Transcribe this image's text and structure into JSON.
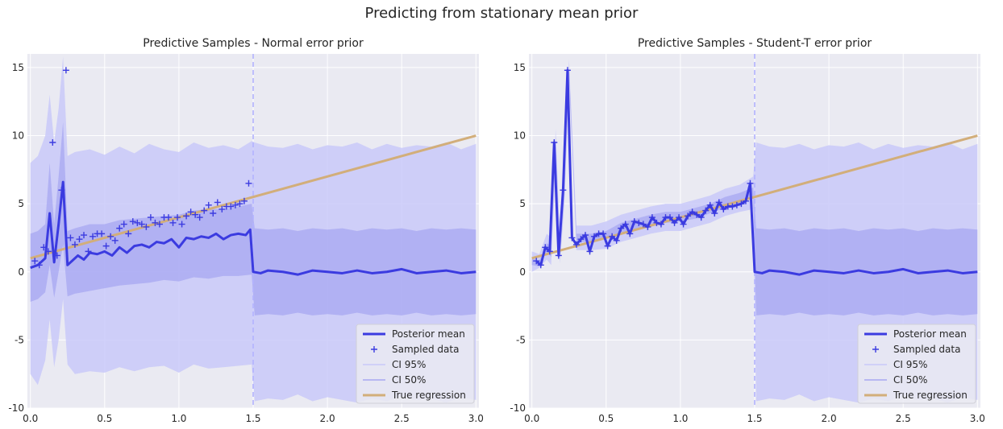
{
  "figure": {
    "suptitle": "Predicting from stationary mean prior"
  },
  "colors": {
    "axes_bg": "#eaeaf2",
    "grid": "#ffffff",
    "posterior_mean": "#3b3be0",
    "ci95": "#c9c9f9",
    "ci50": "#a7a7f1",
    "true_regression": "#d2ae7a",
    "vline": "#b3b3ff"
  },
  "chart_data": [
    {
      "type": "line",
      "title": "Predictive Samples - Normal error prior",
      "xlabel": "",
      "ylabel": "",
      "xlim": [
        -0.02,
        3.02
      ],
      "ylim": [
        -10,
        16
      ],
      "xticks": [
        "0.0",
        "0.5",
        "1.0",
        "1.5",
        "2.0",
        "2.5",
        "3.0"
      ],
      "yticks": [
        "-10",
        "-5",
        "0",
        "5",
        "10",
        "15"
      ],
      "grid": true,
      "vline_x": 1.5,
      "legend": {
        "position": "lower-right",
        "entries": [
          "Posterior mean",
          "Sampled data",
          "CI 95%",
          "CI 50%",
          "True regression"
        ]
      },
      "true_regression": {
        "x": [
          0,
          3
        ],
        "y": [
          1,
          10
        ]
      },
      "sampled_data": {
        "x": [
          0.03,
          0.06,
          0.09,
          0.12,
          0.15,
          0.18,
          0.21,
          0.24,
          0.27,
          0.3,
          0.33,
          0.36,
          0.39,
          0.42,
          0.45,
          0.48,
          0.51,
          0.54,
          0.57,
          0.6,
          0.63,
          0.66,
          0.69,
          0.72,
          0.75,
          0.78,
          0.81,
          0.84,
          0.87,
          0.9,
          0.93,
          0.96,
          0.99,
          1.02,
          1.05,
          1.08,
          1.11,
          1.14,
          1.17,
          1.2,
          1.23,
          1.26,
          1.29,
          1.32,
          1.35,
          1.38,
          1.41,
          1.44,
          1.47
        ],
        "y": [
          0.8,
          0.5,
          1.8,
          1.5,
          9.5,
          1.2,
          6.0,
          14.8,
          2.5,
          2.0,
          2.4,
          2.7,
          1.5,
          2.6,
          2.8,
          2.8,
          1.9,
          2.6,
          2.3,
          3.2,
          3.5,
          2.8,
          3.7,
          3.6,
          3.5,
          3.3,
          4.0,
          3.6,
          3.5,
          4.0,
          4.0,
          3.6,
          4.0,
          3.5,
          4.1,
          4.4,
          4.2,
          4.0,
          4.5,
          4.9,
          4.3,
          5.1,
          4.6,
          4.8,
          4.8,
          4.9,
          5.0,
          5.2,
          6.5
        ]
      },
      "posterior_mean": {
        "x": [
          0.0,
          0.05,
          0.1,
          0.13,
          0.16,
          0.19,
          0.22,
          0.25,
          0.28,
          0.32,
          0.36,
          0.4,
          0.45,
          0.5,
          0.55,
          0.6,
          0.65,
          0.7,
          0.75,
          0.8,
          0.85,
          0.9,
          0.95,
          1.0,
          1.05,
          1.1,
          1.15,
          1.2,
          1.25,
          1.3,
          1.35,
          1.4,
          1.45,
          1.48,
          1.5,
          1.55,
          1.6,
          1.7,
          1.8,
          1.9,
          2.0,
          2.1,
          2.2,
          2.3,
          2.4,
          2.5,
          2.6,
          2.7,
          2.8,
          2.9,
          3.0
        ],
        "y": [
          0.3,
          0.5,
          1.0,
          4.3,
          0.7,
          3.5,
          6.6,
          0.5,
          0.8,
          1.2,
          0.9,
          1.4,
          1.3,
          1.5,
          1.2,
          1.8,
          1.4,
          1.9,
          2.0,
          1.8,
          2.2,
          2.1,
          2.4,
          1.8,
          2.5,
          2.4,
          2.6,
          2.5,
          2.8,
          2.4,
          2.7,
          2.8,
          2.7,
          3.1,
          0.0,
          -0.1,
          0.1,
          0.0,
          -0.2,
          0.1,
          0.0,
          -0.1,
          0.1,
          -0.1,
          0.0,
          0.2,
          -0.1,
          0.0,
          0.1,
          -0.1,
          0.0
        ]
      },
      "ci95": {
        "x": [
          0.0,
          0.05,
          0.1,
          0.13,
          0.16,
          0.19,
          0.22,
          0.25,
          0.3,
          0.4,
          0.5,
          0.6,
          0.7,
          0.8,
          0.9,
          1.0,
          1.1,
          1.2,
          1.3,
          1.4,
          1.49,
          1.51,
          1.6,
          1.7,
          1.8,
          1.9,
          2.0,
          2.1,
          2.2,
          2.3,
          2.4,
          2.5,
          2.6,
          2.7,
          2.8,
          2.9,
          3.0
        ],
        "lower": [
          -7.5,
          -8.3,
          -6.5,
          -3.5,
          -7.0,
          -5.0,
          -2.0,
          -6.8,
          -7.5,
          -7.3,
          -7.4,
          -7.0,
          -7.3,
          -7.0,
          -6.9,
          -7.4,
          -6.8,
          -7.1,
          -7.0,
          -6.9,
          -6.8,
          -9.5,
          -9.3,
          -9.4,
          -9.0,
          -9.5,
          -9.2,
          -9.4,
          -9.6,
          -9.3,
          -9.5,
          -9.1,
          -9.4,
          -9.3,
          -9.6,
          -9.2,
          -9.4
        ],
        "upper": [
          8.0,
          8.5,
          10.0,
          13.0,
          9.5,
          12.0,
          15.8,
          8.5,
          8.8,
          9.0,
          8.6,
          9.2,
          8.7,
          9.4,
          9.0,
          8.8,
          9.5,
          9.1,
          9.3,
          9.0,
          9.6,
          9.5,
          9.2,
          9.1,
          9.4,
          9.0,
          9.3,
          9.2,
          9.5,
          9.0,
          9.4,
          9.1,
          9.3,
          9.2,
          9.5,
          9.0,
          9.4
        ]
      },
      "ci50": {
        "x": [
          0.0,
          0.05,
          0.1,
          0.13,
          0.16,
          0.19,
          0.22,
          0.25,
          0.3,
          0.4,
          0.5,
          0.6,
          0.7,
          0.8,
          0.9,
          1.0,
          1.1,
          1.2,
          1.3,
          1.4,
          1.49,
          1.51,
          1.6,
          1.7,
          1.8,
          1.9,
          2.0,
          2.1,
          2.2,
          2.3,
          2.4,
          2.5,
          2.6,
          2.7,
          2.8,
          2.9,
          3.0
        ],
        "lower": [
          -2.2,
          -2.0,
          -1.5,
          0.5,
          -1.9,
          0.0,
          2.0,
          -1.8,
          -1.6,
          -1.4,
          -1.2,
          -1.0,
          -0.9,
          -0.8,
          -0.6,
          -0.7,
          -0.4,
          -0.5,
          -0.3,
          -0.3,
          -0.2,
          -3.2,
          -3.1,
          -3.2,
          -3.0,
          -3.2,
          -3.1,
          -3.2,
          -3.0,
          -3.2,
          -3.1,
          -3.2,
          -3.0,
          -3.2,
          -3.1,
          -3.2,
          -3.1
        ],
        "upper": [
          2.8,
          3.0,
          3.5,
          8.0,
          3.5,
          7.0,
          11.0,
          3.0,
          3.2,
          3.5,
          3.5,
          3.8,
          3.9,
          4.0,
          4.1,
          4.2,
          4.5,
          4.6,
          4.6,
          4.8,
          5.0,
          3.2,
          3.1,
          3.2,
          3.0,
          3.2,
          3.1,
          3.2,
          3.0,
          3.2,
          3.1,
          3.2,
          3.0,
          3.2,
          3.1,
          3.2,
          3.1
        ]
      }
    },
    {
      "type": "line",
      "title": "Predictive Samples - Student-T error prior",
      "xlabel": "",
      "ylabel": "",
      "xlim": [
        -0.02,
        3.02
      ],
      "ylim": [
        -10,
        16
      ],
      "xticks": [
        "0.0",
        "0.5",
        "1.0",
        "1.5",
        "2.0",
        "2.5",
        "3.0"
      ],
      "yticks": [
        "-10",
        "-5",
        "0",
        "5",
        "10",
        "15"
      ],
      "grid": true,
      "vline_x": 1.5,
      "legend": {
        "position": "lower-right",
        "entries": [
          "Posterior mean",
          "Sampled data",
          "CI 95%",
          "CI 50%",
          "True regression"
        ]
      },
      "true_regression": {
        "x": [
          0,
          3
        ],
        "y": [
          1,
          10
        ]
      },
      "sampled_data": {
        "x": [
          0.03,
          0.06,
          0.09,
          0.12,
          0.15,
          0.18,
          0.21,
          0.24,
          0.27,
          0.3,
          0.33,
          0.36,
          0.39,
          0.42,
          0.45,
          0.48,
          0.51,
          0.54,
          0.57,
          0.6,
          0.63,
          0.66,
          0.69,
          0.72,
          0.75,
          0.78,
          0.81,
          0.84,
          0.87,
          0.9,
          0.93,
          0.96,
          0.99,
          1.02,
          1.05,
          1.08,
          1.11,
          1.14,
          1.17,
          1.2,
          1.23,
          1.26,
          1.29,
          1.32,
          1.35,
          1.38,
          1.41,
          1.44,
          1.47
        ],
        "y": [
          0.8,
          0.5,
          1.8,
          1.5,
          9.5,
          1.2,
          6.0,
          14.8,
          2.5,
          2.0,
          2.4,
          2.7,
          1.5,
          2.6,
          2.8,
          2.8,
          1.9,
          2.6,
          2.3,
          3.2,
          3.5,
          2.8,
          3.7,
          3.6,
          3.5,
          3.3,
          4.0,
          3.6,
          3.5,
          4.0,
          4.0,
          3.6,
          4.0,
          3.5,
          4.1,
          4.4,
          4.2,
          4.0,
          4.5,
          4.9,
          4.3,
          5.1,
          4.6,
          4.8,
          4.8,
          4.9,
          5.0,
          5.2,
          6.5
        ]
      },
      "posterior_mean": {
        "x": [
          0.03,
          0.06,
          0.09,
          0.12,
          0.15,
          0.18,
          0.21,
          0.24,
          0.27,
          0.3,
          0.33,
          0.36,
          0.39,
          0.42,
          0.45,
          0.48,
          0.51,
          0.54,
          0.57,
          0.6,
          0.63,
          0.66,
          0.69,
          0.72,
          0.75,
          0.78,
          0.81,
          0.84,
          0.87,
          0.9,
          0.93,
          0.96,
          0.99,
          1.02,
          1.05,
          1.08,
          1.11,
          1.14,
          1.17,
          1.2,
          1.23,
          1.26,
          1.29,
          1.32,
          1.35,
          1.38,
          1.41,
          1.44,
          1.47,
          1.5,
          1.55,
          1.6,
          1.7,
          1.8,
          1.9,
          2.0,
          2.1,
          2.2,
          2.3,
          2.4,
          2.5,
          2.6,
          2.7,
          2.8,
          2.9,
          3.0
        ],
        "y": [
          0.8,
          0.5,
          1.8,
          1.5,
          9.5,
          1.2,
          6.0,
          14.8,
          2.5,
          2.0,
          2.4,
          2.7,
          1.5,
          2.6,
          2.8,
          2.8,
          1.9,
          2.6,
          2.3,
          3.2,
          3.5,
          2.8,
          3.7,
          3.6,
          3.5,
          3.3,
          4.0,
          3.6,
          3.5,
          4.0,
          4.0,
          3.6,
          4.0,
          3.5,
          4.1,
          4.4,
          4.2,
          4.0,
          4.5,
          4.9,
          4.3,
          5.1,
          4.6,
          4.8,
          4.8,
          4.9,
          5.0,
          5.2,
          6.5,
          0.0,
          -0.1,
          0.1,
          0.0,
          -0.2,
          0.1,
          0.0,
          -0.1,
          0.1,
          -0.1,
          0.0,
          0.2,
          -0.1,
          0.0,
          0.1,
          -0.1,
          0.0
        ]
      },
      "ci95": {
        "x": [
          0.0,
          0.05,
          0.1,
          0.13,
          0.16,
          0.19,
          0.22,
          0.25,
          0.3,
          0.4,
          0.5,
          0.6,
          0.7,
          0.8,
          0.9,
          1.0,
          1.1,
          1.2,
          1.3,
          1.4,
          1.49,
          1.51,
          1.6,
          1.7,
          1.8,
          1.9,
          2.0,
          2.1,
          2.2,
          2.3,
          2.4,
          2.5,
          2.6,
          2.7,
          2.8,
          2.9,
          3.0
        ],
        "lower": [
          0.0,
          0.3,
          0.9,
          0.5,
          8.5,
          0.6,
          5.3,
          14.0,
          1.6,
          1.6,
          1.7,
          2.2,
          2.5,
          2.8,
          3.0,
          3.0,
          3.3,
          3.6,
          4.1,
          4.4,
          4.6,
          -9.5,
          -9.3,
          -9.4,
          -9.0,
          -9.5,
          -9.2,
          -9.4,
          -9.6,
          -9.3,
          -9.5,
          -9.1,
          -9.4,
          -9.3,
          -9.6,
          -9.2,
          -9.4
        ],
        "upper": [
          1.5,
          1.3,
          2.8,
          2.5,
          10.5,
          2.0,
          7.0,
          15.6,
          3.4,
          3.4,
          3.7,
          4.2,
          4.5,
          4.8,
          5.0,
          5.0,
          5.3,
          5.6,
          6.1,
          6.4,
          7.0,
          9.5,
          9.2,
          9.1,
          9.4,
          9.0,
          9.3,
          9.2,
          9.5,
          9.0,
          9.4,
          9.1,
          9.3,
          9.2,
          9.5,
          9.0,
          9.4
        ]
      },
      "ci50": {
        "x": [
          0.0,
          0.05,
          0.1,
          0.13,
          0.16,
          0.19,
          0.22,
          0.25,
          0.3,
          0.4,
          0.5,
          0.6,
          0.7,
          0.8,
          0.9,
          1.0,
          1.1,
          1.2,
          1.3,
          1.4,
          1.49,
          1.51,
          1.6,
          1.7,
          1.8,
          1.9,
          2.0,
          2.1,
          2.2,
          2.3,
          2.4,
          2.5,
          2.6,
          2.7,
          2.8,
          2.9,
          3.0
        ],
        "lower": [
          0.5,
          0.4,
          1.5,
          1.1,
          9.1,
          1.0,
          5.7,
          14.5,
          2.2,
          2.2,
          2.4,
          2.8,
          3.1,
          3.4,
          3.6,
          3.7,
          3.9,
          4.3,
          4.7,
          5.0,
          5.5,
          -3.2,
          -3.1,
          -3.2,
          -3.0,
          -3.2,
          -3.1,
          -3.2,
          -3.0,
          -3.2,
          -3.1,
          -3.2,
          -3.0,
          -3.2,
          -3.1,
          -3.2,
          -3.1
        ],
        "upper": [
          1.0,
          0.8,
          2.1,
          1.9,
          9.9,
          1.5,
          6.4,
          15.1,
          2.8,
          2.8,
          3.0,
          3.6,
          3.9,
          4.2,
          4.4,
          4.4,
          4.7,
          5.0,
          5.5,
          5.8,
          6.2,
          3.2,
          3.1,
          3.2,
          3.0,
          3.2,
          3.1,
          3.2,
          3.0,
          3.2,
          3.1,
          3.2,
          3.0,
          3.2,
          3.1,
          3.2,
          3.1
        ]
      }
    }
  ]
}
